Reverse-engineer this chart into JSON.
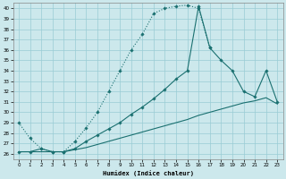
{
  "xlabel": "Humidex (Indice chaleur)",
  "bg_color": "#cce8ec",
  "grid_color": "#99ccd4",
  "line_color": "#1a7070",
  "xlim": [
    -0.5,
    23.5
  ],
  "ylim": [
    25.5,
    40.5
  ],
  "xticks": [
    0,
    1,
    2,
    3,
    4,
    5,
    6,
    7,
    8,
    9,
    10,
    11,
    12,
    13,
    14,
    15,
    16,
    17,
    18,
    19,
    20,
    21,
    22,
    23
  ],
  "yticks": [
    26,
    27,
    28,
    29,
    30,
    31,
    32,
    33,
    34,
    35,
    36,
    37,
    38,
    39,
    40
  ],
  "line1_x": [
    0,
    1,
    2,
    3,
    4,
    5,
    6,
    7,
    8,
    9,
    10,
    11,
    12,
    13,
    14,
    15,
    16,
    17
  ],
  "line1_y": [
    29.0,
    27.5,
    26.5,
    26.2,
    26.2,
    27.2,
    28.5,
    30.0,
    32.0,
    34.0,
    36.0,
    37.5,
    39.5,
    40.0,
    40.2,
    40.3,
    40.0,
    36.2
  ],
  "line2_x": [
    0,
    1,
    2,
    3,
    4,
    5,
    6,
    7,
    8,
    9,
    10,
    11,
    12,
    13,
    14,
    15,
    16,
    17,
    18,
    19,
    20,
    21,
    22,
    23
  ],
  "line2_y": [
    26.2,
    26.2,
    26.5,
    26.2,
    26.2,
    26.5,
    27.2,
    27.8,
    28.4,
    29.0,
    29.8,
    30.5,
    31.3,
    32.2,
    33.2,
    34.0,
    40.2,
    36.2,
    35.0,
    34.0,
    32.0,
    31.5,
    34.0,
    31.0
  ],
  "line3_x": [
    0,
    1,
    2,
    3,
    4,
    5,
    6,
    7,
    8,
    9,
    10,
    11,
    12,
    13,
    14,
    15,
    16,
    17,
    18,
    19,
    20,
    21,
    22,
    23
  ],
  "line3_y": [
    26.2,
    26.2,
    26.2,
    26.2,
    26.2,
    26.4,
    26.6,
    26.9,
    27.2,
    27.5,
    27.8,
    28.1,
    28.4,
    28.7,
    29.0,
    29.3,
    29.7,
    30.0,
    30.3,
    30.6,
    30.9,
    31.1,
    31.4,
    30.8
  ]
}
